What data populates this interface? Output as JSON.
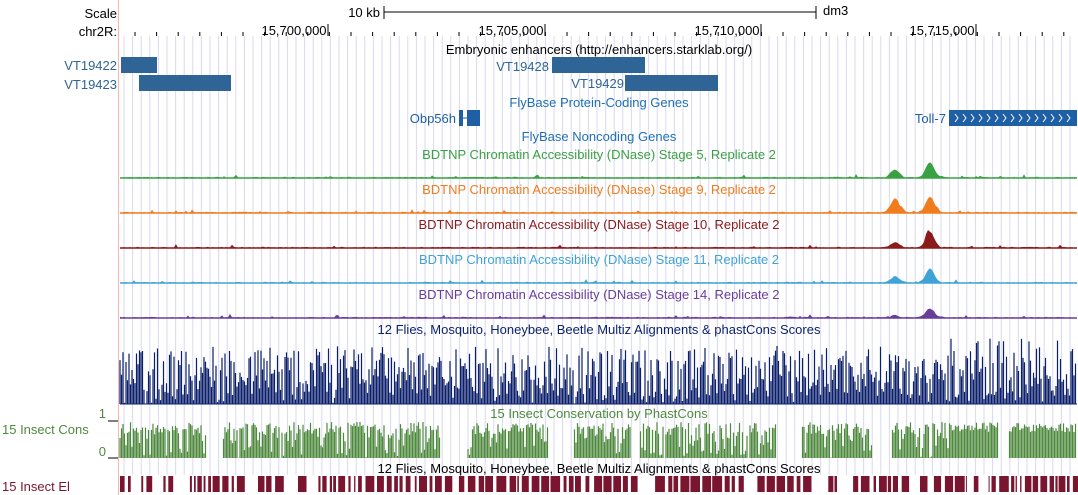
{
  "header": {
    "scale_label": "Scale",
    "scale_bar_text": "10 kb",
    "assembly": "dm3",
    "chrom_label": "chr2R:",
    "positions": [
      "15,700,000",
      "15,705,000",
      "15,710,000",
      "15,715,000"
    ]
  },
  "colors": {
    "enhancer": "#2e6496",
    "gene": "#1f5fa5",
    "stage5": "#3aa142",
    "stage9": "#f07c1e",
    "stage10": "#8b1a1a",
    "stage11": "#3fa3d6",
    "stage14": "#6a3d9a",
    "multiz": "#0b1f6b",
    "cons": "#4e8a3e",
    "elements": "#7a1530",
    "grid": "#d8d8f0"
  },
  "tracks": {
    "enhancers": {
      "title": "Embryonic enhancers (http://enhancers.starklab.org/)",
      "items": [
        {
          "name": "VT19422"
        },
        {
          "name": "VT19423"
        },
        {
          "name": "VT19428"
        },
        {
          "name": "VT19429"
        }
      ]
    },
    "protein_coding": {
      "title": "FlyBase Protein-Coding Genes",
      "genes": [
        {
          "name": "Obp56h"
        },
        {
          "name": "Toll-7"
        }
      ]
    },
    "noncoding": {
      "title": "FlyBase Noncoding Genes"
    },
    "dnase": [
      {
        "title": "BDTNP Chromatin Accessibility (DNase) Stage 5, Replicate 2",
        "color_key": "stage5"
      },
      {
        "title": "BDTNP Chromatin Accessibility (DNase) Stage 9, Replicate 2",
        "color_key": "stage9"
      },
      {
        "title": "BDTNP Chromatin Accessibility (DNase) Stage 10, Replicate 2",
        "color_key": "stage10"
      },
      {
        "title": "BDTNP Chromatin Accessibility (DNase) Stage 11, Replicate 2",
        "color_key": "stage11"
      },
      {
        "title": "BDTNP Chromatin Accessibility (DNase) Stage 14, Replicate 2",
        "color_key": "stage14"
      }
    ],
    "multiz": {
      "title": "12 Flies, Mosquito, Honeybee, Beetle Multiz Alignments & phastCons Scores"
    },
    "conservation": {
      "title": "15 Insect Conservation by PhastCons",
      "left_label": "15 Insect Cons",
      "max_label": "1",
      "min_label": "0"
    },
    "elements": {
      "title": "12 Flies, Mosquito, Honeybee, Beetle Multiz Alignments & phastCons Scores",
      "left_label": "15 Insect El"
    }
  }
}
